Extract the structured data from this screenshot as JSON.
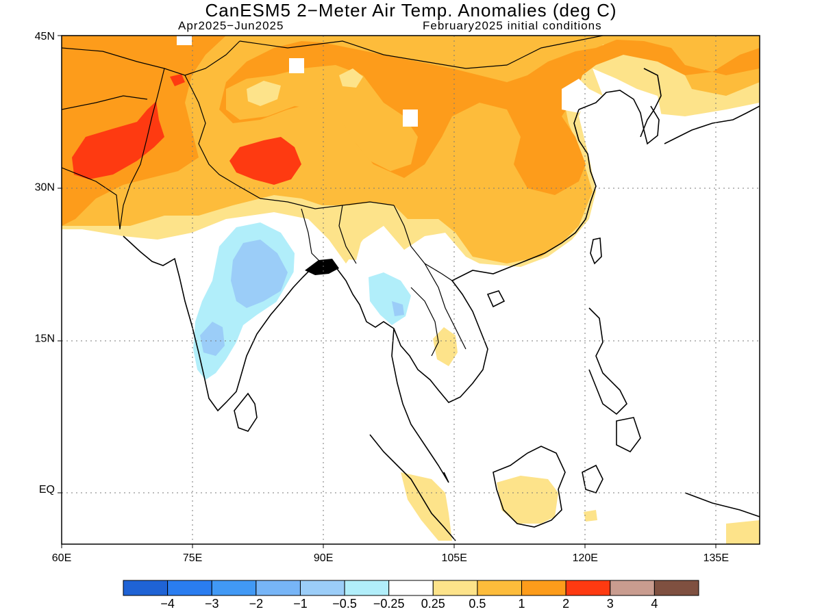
{
  "title": "CanESM5 2−Meter Air Temp. Anomalies (deg C)",
  "subtitle_left": "Apr2025−Jun2025",
  "subtitle_right": "February2025 initial conditions",
  "map": {
    "projection": "lat-lon",
    "lon_range": [
      60,
      140
    ],
    "lat_range": [
      -5.5,
      45
    ],
    "lat_ticks": [
      {
        "value": 45,
        "label": "45N"
      },
      {
        "value": 30,
        "label": "30N"
      },
      {
        "value": 15,
        "label": "15N"
      },
      {
        "value": 0,
        "label": "EQ"
      }
    ],
    "lon_ticks": [
      {
        "value": 60,
        "label": "60E"
      },
      {
        "value": 75,
        "label": "75E"
      },
      {
        "value": 90,
        "label": "90E"
      },
      {
        "value": 105,
        "label": "105E"
      },
      {
        "value": 120,
        "label": "120E"
      },
      {
        "value": 135,
        "label": "135E"
      }
    ],
    "grid": "dotted"
  },
  "colorbar": {
    "colors": [
      "#1f63d5",
      "#2a7df0",
      "#4199f5",
      "#77b5f7",
      "#9bcdf8",
      "#b1eefa",
      "#ffffff",
      "#fde38a",
      "#fdbc3b",
      "#fd9c1b",
      "#fe3a11",
      "#c99c8f",
      "#7f5040"
    ],
    "labels": [
      "−4",
      "−3",
      "−2",
      "−1",
      "−0.5",
      "−0.25",
      "0.25",
      "0.5",
      "1",
      "2",
      "3",
      "4"
    ]
  },
  "anomaly_regions": [
    {
      "level": "0.25 to 0.5",
      "color": "#fde38a",
      "desc": "northern India / Himalaya foothills band"
    },
    {
      "level": "0.5 to 1",
      "color": "#fdbc3b",
      "desc": "Tibetan Plateau and central China"
    },
    {
      "level": "1 to 2",
      "color": "#fd9c1b",
      "desc": "Central Asia, Mongolia, eastern China"
    },
    {
      "level": "2 to 3",
      "color": "#fe3a11",
      "desc": "Afghanistan and western Tibet"
    },
    {
      "level": "-0.5 to -0.25",
      "color": "#b1eefa",
      "desc": "central India and Myanmar"
    },
    {
      "level": "-1 to -0.5",
      "color": "#9bcdf8",
      "desc": "central-east India"
    },
    {
      "level": "0.25 to 0.5",
      "color": "#fde38a",
      "desc": "Borneo, Sumatra, Cambodia patches"
    }
  ]
}
